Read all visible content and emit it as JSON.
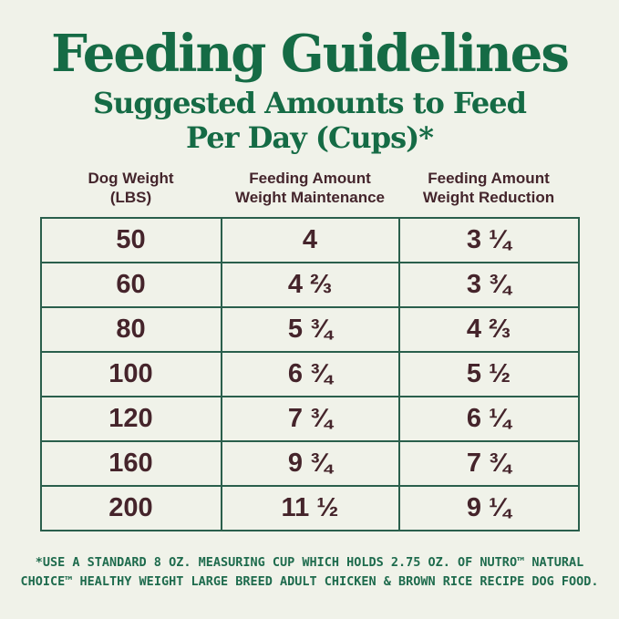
{
  "page": {
    "background": "#f0f2e9",
    "title": "Feeding Guidelines",
    "subtitle_line1": "Suggested Amounts to Feed",
    "subtitle_line2": "Per Day (Cups)*"
  },
  "colors": {
    "heading_green": "#156b45",
    "table_border_green": "#2a5f4c",
    "cell_text_brown": "#45242b",
    "footnote_green": "#1e6b4d"
  },
  "table": {
    "headers": [
      {
        "line1": "Dog Weight",
        "line2": "(LBS)"
      },
      {
        "line1": "Feeding Amount",
        "line2": "Weight Maintenance"
      },
      {
        "line1": "Feeding Amount",
        "line2": "Weight Reduction"
      }
    ],
    "rows": [
      {
        "weight": "50",
        "maintenance": "4",
        "reduction": "3 ¼"
      },
      {
        "weight": "60",
        "maintenance": "4 ⅔",
        "reduction": "3 ¾"
      },
      {
        "weight": "80",
        "maintenance": "5 ¾",
        "reduction": "4 ⅔"
      },
      {
        "weight": "100",
        "maintenance": "6 ¾",
        "reduction": "5 ½"
      },
      {
        "weight": "120",
        "maintenance": "7 ¾",
        "reduction": "6 ¼"
      },
      {
        "weight": "160",
        "maintenance": "9 ¾",
        "reduction": "7 ¾"
      },
      {
        "weight": "200",
        "maintenance": "11 ½",
        "reduction": "9 ¼"
      }
    ]
  },
  "footnote": {
    "line1": "*USE A STANDARD 8 OZ. MEASURING CUP WHICH HOLDS 2.75 OZ. OF NUTRO™ NATURAL",
    "line2": "CHOICE™ HEALTHY WEIGHT LARGE BREED ADULT CHICKEN & BROWN RICE RECIPE DOG FOOD."
  },
  "chart_data": {
    "type": "table",
    "title": "Feeding Guidelines",
    "subtitle": "Suggested Amounts to Feed Per Day (Cups)*",
    "columns": [
      "Dog Weight (LBS)",
      "Feeding Amount Weight Maintenance",
      "Feeding Amount Weight Reduction"
    ],
    "rows_display": [
      [
        "50",
        "4",
        "3 ¼"
      ],
      [
        "60",
        "4 ⅔",
        "3 ¾"
      ],
      [
        "80",
        "5 ¾",
        "4 ⅔"
      ],
      [
        "100",
        "6 ¾",
        "5 ½"
      ],
      [
        "120",
        "7 ¾",
        "6 ¼"
      ],
      [
        "160",
        "9 ¾",
        "7 ¾"
      ],
      [
        "200",
        "11 ½",
        "9 ¼"
      ]
    ],
    "rows_numeric": [
      {
        "dog_weight_lbs": 50,
        "weight_maintenance_cups": 4,
        "weight_reduction_cups": 3.25
      },
      {
        "dog_weight_lbs": 60,
        "weight_maintenance_cups": 4.667,
        "weight_reduction_cups": 3.75
      },
      {
        "dog_weight_lbs": 80,
        "weight_maintenance_cups": 5.75,
        "weight_reduction_cups": 4.667
      },
      {
        "dog_weight_lbs": 100,
        "weight_maintenance_cups": 6.75,
        "weight_reduction_cups": 5.5
      },
      {
        "dog_weight_lbs": 120,
        "weight_maintenance_cups": 7.75,
        "weight_reduction_cups": 6.25
      },
      {
        "dog_weight_lbs": 160,
        "weight_maintenance_cups": 9.75,
        "weight_reduction_cups": 7.75
      },
      {
        "dog_weight_lbs": 200,
        "weight_maintenance_cups": 11.5,
        "weight_reduction_cups": 9.25
      }
    ],
    "footnote": "*USE A STANDARD 8 OZ. MEASURING CUP WHICH HOLDS 2.75 OZ. OF NUTRO™ NATURAL CHOICE™ HEALTHY WEIGHT LARGE BREED ADULT CHICKEN & BROWN RICE RECIPE DOG FOOD."
  }
}
